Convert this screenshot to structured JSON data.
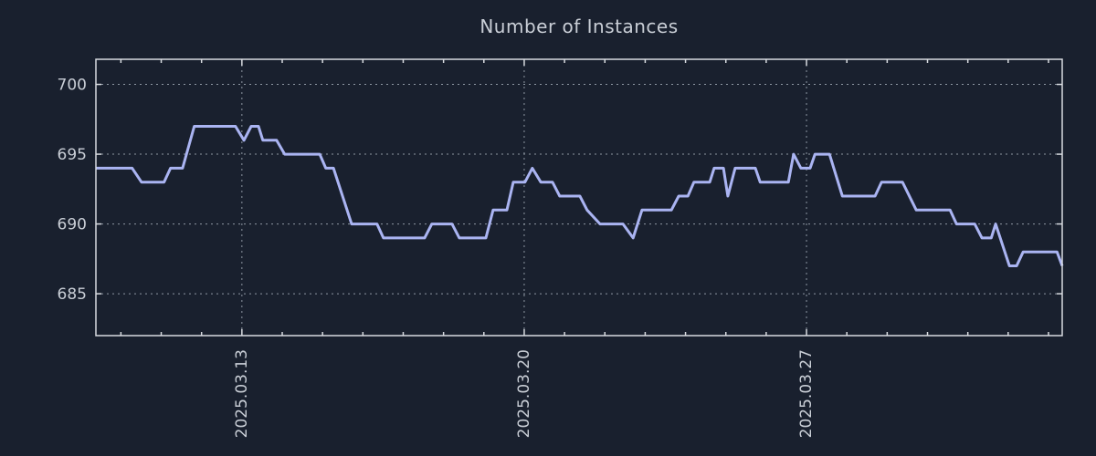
{
  "figure": {
    "title": "Number of Instances"
  },
  "colors": {
    "background": "#19202e",
    "line": "#aab4f2",
    "axis": "#d8dbe0",
    "grid": "#8e97a3",
    "text": "#c9ced6"
  },
  "chart_data": {
    "type": "line",
    "title": "Number of Instances",
    "xlabel": "",
    "ylabel": "",
    "grid": true,
    "legend": false,
    "x_axis": {
      "unit": "days relative to 2025.03.13",
      "range": [
        -3.62,
        20.34
      ],
      "major_ticks": [
        {
          "t": 0,
          "label": "2025.03.13"
        },
        {
          "t": 7,
          "label": "2025.03.20"
        },
        {
          "t": 14,
          "label": "2025.03.27"
        }
      ],
      "minor_tick_interval": 1
    },
    "y_axis": {
      "range": [
        682,
        701.8
      ],
      "ticks": [
        685,
        690,
        695,
        700
      ]
    },
    "series": [
      {
        "name": "instances",
        "color": "#aab4f2",
        "points": [
          [
            -3.62,
            694
          ],
          [
            -2.72,
            694
          ],
          [
            -2.49,
            693
          ],
          [
            -1.93,
            693
          ],
          [
            -1.77,
            694
          ],
          [
            -1.47,
            694
          ],
          [
            -1.18,
            697
          ],
          [
            -0.16,
            697
          ],
          [
            0.05,
            696
          ],
          [
            0.23,
            697
          ],
          [
            0.41,
            697
          ],
          [
            0.52,
            696
          ],
          [
            0.86,
            696
          ],
          [
            1.06,
            695
          ],
          [
            1.93,
            695
          ],
          [
            2.08,
            694
          ],
          [
            2.27,
            694
          ],
          [
            2.72,
            690
          ],
          [
            3.35,
            690
          ],
          [
            3.51,
            689
          ],
          [
            4.53,
            689
          ],
          [
            4.71,
            690
          ],
          [
            5.21,
            690
          ],
          [
            5.39,
            689
          ],
          [
            6.05,
            689
          ],
          [
            6.23,
            691
          ],
          [
            6.57,
            691
          ],
          [
            6.73,
            693
          ],
          [
            7.02,
            693
          ],
          [
            7.2,
            694
          ],
          [
            7.41,
            693
          ],
          [
            7.7,
            693
          ],
          [
            7.88,
            692
          ],
          [
            8.38,
            692
          ],
          [
            8.56,
            691
          ],
          [
            8.88,
            690
          ],
          [
            9.45,
            690
          ],
          [
            9.7,
            689
          ],
          [
            9.92,
            691
          ],
          [
            10.65,
            691
          ],
          [
            10.83,
            692
          ],
          [
            11.06,
            692
          ],
          [
            11.21,
            693
          ],
          [
            11.6,
            693
          ],
          [
            11.71,
            694
          ],
          [
            11.94,
            694
          ],
          [
            12.05,
            692
          ],
          [
            12.23,
            694
          ],
          [
            12.73,
            694
          ],
          [
            12.85,
            693
          ],
          [
            13.55,
            693
          ],
          [
            13.68,
            695
          ],
          [
            13.86,
            694
          ],
          [
            14.09,
            694
          ],
          [
            14.21,
            695
          ],
          [
            14.57,
            695
          ],
          [
            14.89,
            692
          ],
          [
            15.7,
            692
          ],
          [
            15.86,
            693
          ],
          [
            16.38,
            693
          ],
          [
            16.72,
            691
          ],
          [
            17.56,
            691
          ],
          [
            17.72,
            690
          ],
          [
            18.17,
            690
          ],
          [
            18.35,
            689
          ],
          [
            18.58,
            689
          ],
          [
            18.69,
            690
          ],
          [
            19.03,
            687
          ],
          [
            19.21,
            687
          ],
          [
            19.37,
            688
          ],
          [
            20.21,
            688
          ],
          [
            20.34,
            687
          ]
        ]
      }
    ]
  }
}
